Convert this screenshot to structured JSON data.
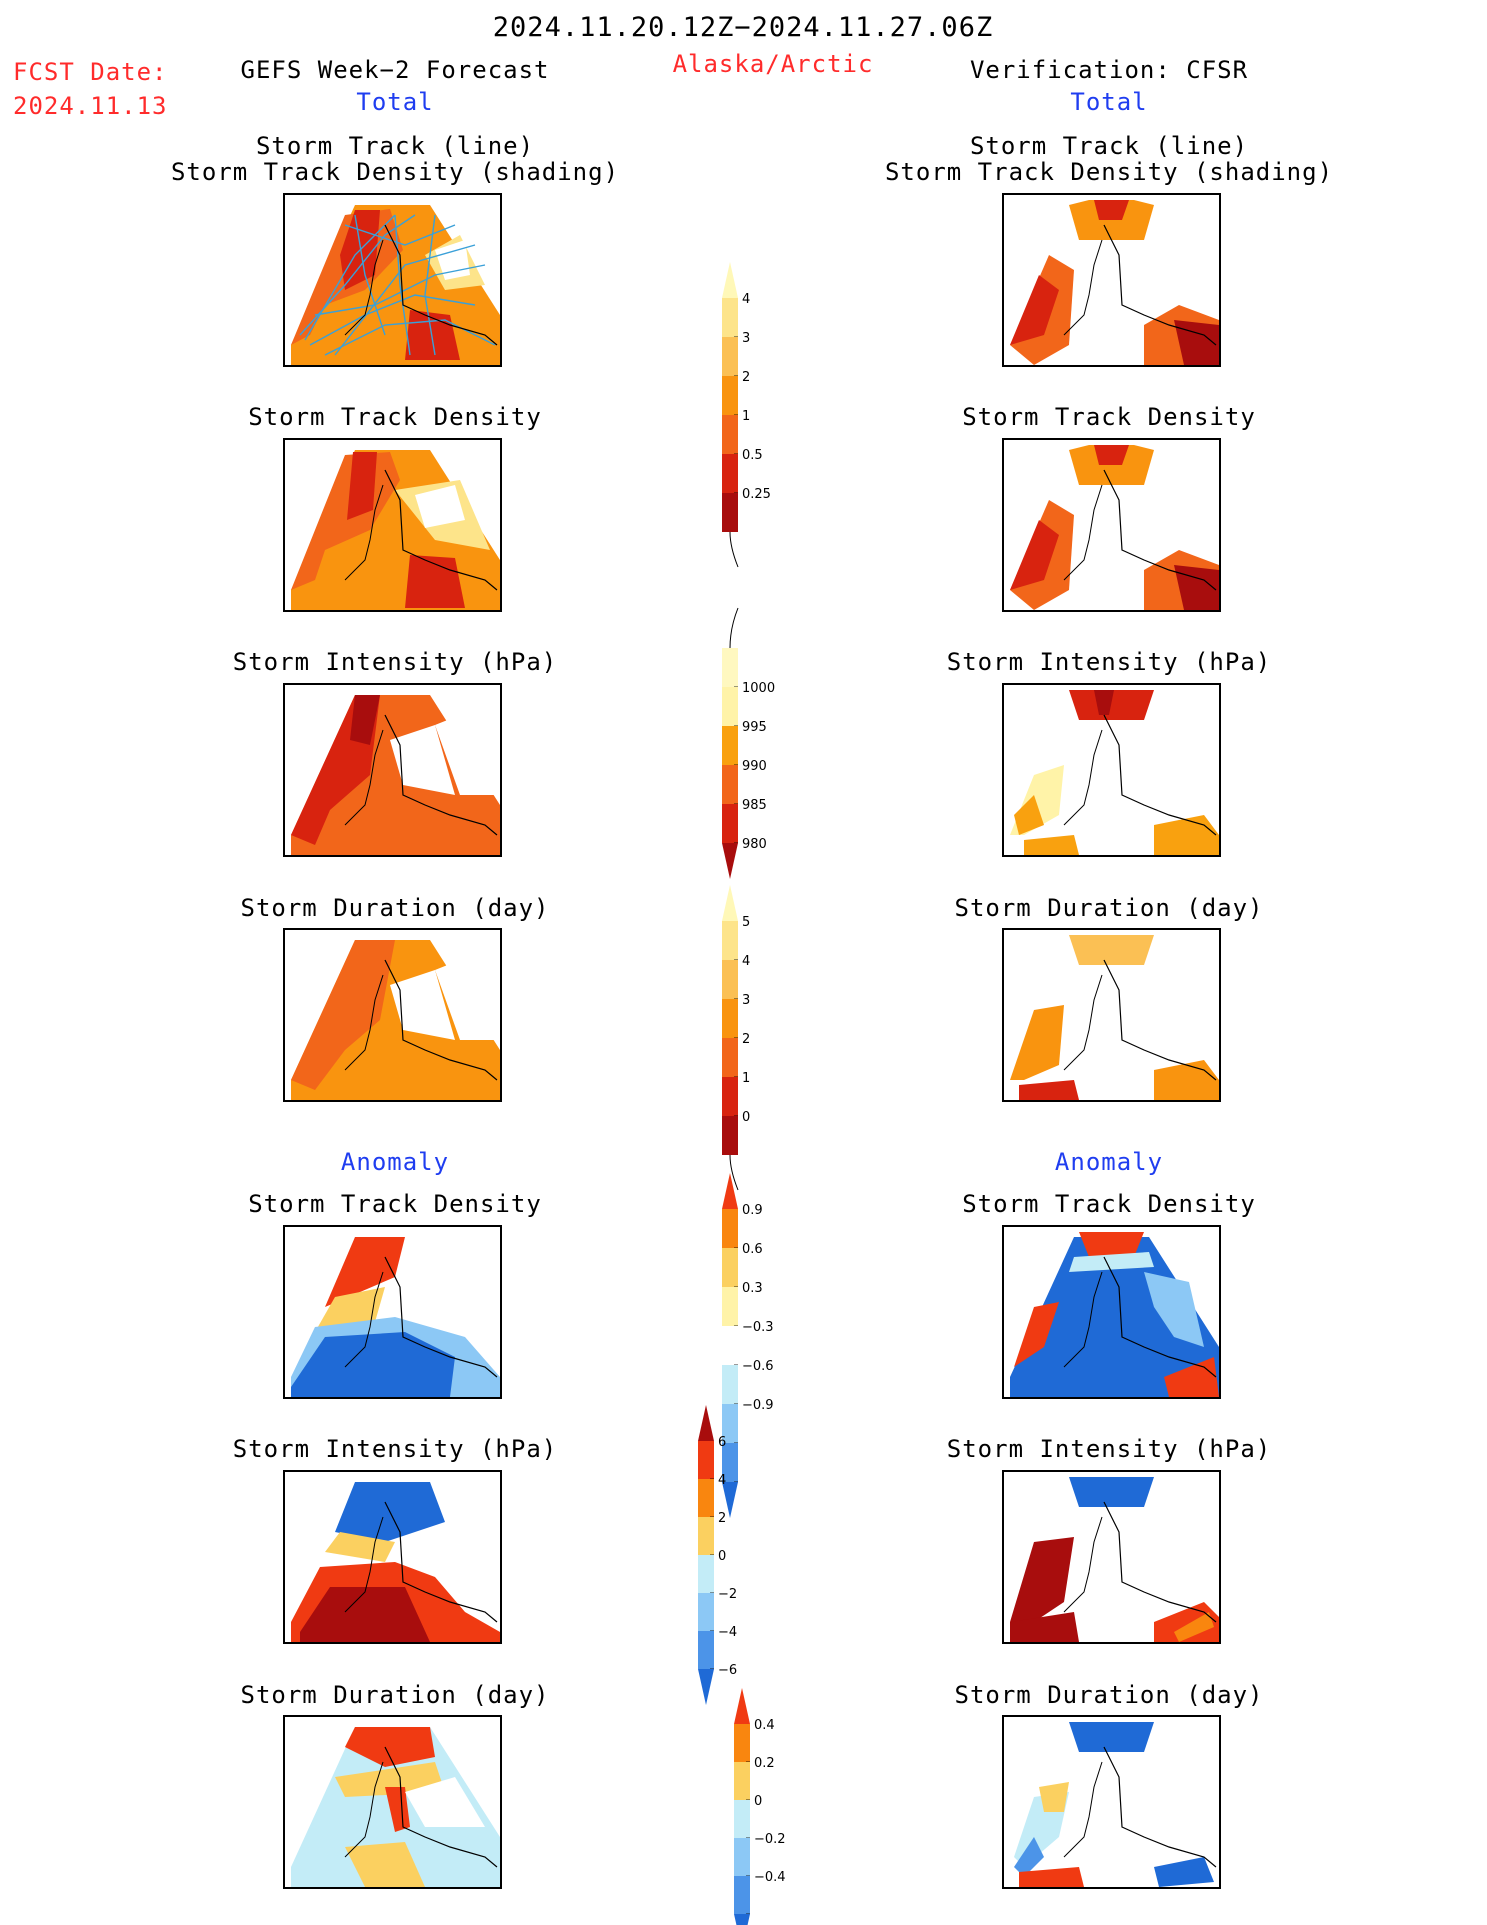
{
  "header": {
    "date_range": "2024.11.20.12Z−2024.11.27.06Z",
    "fcst_label": "FCST Date:",
    "fcst_date": "2024.11.13",
    "left_title": "GEFS Week−2 Forecast",
    "region": "Alaska/Arctic",
    "right_title": "Verification: CFSR"
  },
  "sections": {
    "total": "Total",
    "anomaly": "Anomaly"
  },
  "panel_titles": {
    "track_line": "Storm Track (line)",
    "track_shading": "Storm Track Density (shading)",
    "density": "Storm Track Density",
    "intensity": "Storm Intensity (hPa)",
    "duration": "Storm Duration (day)"
  },
  "colors": {
    "red_text": "#ff2b2b",
    "blue_text": "#1f3df0",
    "track_line": "#3aa0d8",
    "pale_yellow": "#fff3a8",
    "yellow": "#fbd060",
    "light_orange": "#fdb32e",
    "orange": "#f9860f",
    "dark_orange": "#f25c12",
    "red": "#d61f0f",
    "dark_red": "#a80d0d",
    "light_blue": "#c3ecf7",
    "sky_blue": "#8cc8f5",
    "mid_blue": "#4c94e8",
    "blue": "#1f6ad6"
  },
  "chart_data": [
    {
      "type": "heatmap",
      "title": "Storm Track Density",
      "units": "",
      "colorbar": {
        "ticks": [
          "0.25",
          "0.5",
          "1",
          "2",
          "3",
          "4"
        ],
        "colors": [
          "#fff8b8",
          "#fde48a",
          "#fbc054",
          "#f9940f",
          "#f2661a",
          "#d8230f",
          "#a80d0d"
        ]
      }
    },
    {
      "type": "heatmap",
      "title": "Storm Intensity (hPa)",
      "colorbar": {
        "ticks": [
          "1000",
          "995",
          "990",
          "985",
          "980"
        ],
        "colors": [
          "#fff8c0",
          "#fff3a8",
          "#f9a10f",
          "#f2661a",
          "#d8230f",
          "#a80d0d"
        ]
      }
    },
    {
      "type": "heatmap",
      "title": "Storm Duration (day)",
      "colorbar": {
        "ticks": [
          "0",
          "1",
          "2",
          "3",
          "4",
          "5"
        ],
        "colors": [
          "#fff8b8",
          "#fde48a",
          "#fbc054",
          "#f9940f",
          "#f2661a",
          "#d8230f",
          "#a80d0d"
        ]
      }
    },
    {
      "type": "heatmap",
      "title": "Anomaly Storm Track Density",
      "colorbar": {
        "ticks": [
          "0.9",
          "0.6",
          "0.3",
          "−0.3",
          "−0.6",
          "−0.9"
        ],
        "colors": [
          "#f03a12",
          "#f9860f",
          "#fbd060",
          "#fff3a8",
          "#ffffff",
          "#c3ecf7",
          "#8cc8f5",
          "#4c94e8",
          "#1f6ad6"
        ]
      }
    },
    {
      "type": "heatmap",
      "title": "Anomaly Storm Intensity (hPa)",
      "colorbar": {
        "ticks": [
          "6",
          "4",
          "2",
          "0",
          "−2",
          "−4",
          "−6"
        ],
        "colors": [
          "#a80d0d",
          "#f03a12",
          "#f9860f",
          "#fbd060",
          "#c3ecf7",
          "#8cc8f5",
          "#4c94e8",
          "#1f6ad6"
        ]
      }
    },
    {
      "type": "heatmap",
      "title": "Anomaly Storm Duration (day)",
      "colorbar": {
        "ticks": [
          "0.4",
          "0.2",
          "0",
          "−0.2",
          "−0.4"
        ],
        "colors": [
          "#f03a12",
          "#f9860f",
          "#fbd060",
          "#c3ecf7",
          "#8cc8f5",
          "#4c94e8",
          "#1f6ad6"
        ]
      }
    }
  ]
}
